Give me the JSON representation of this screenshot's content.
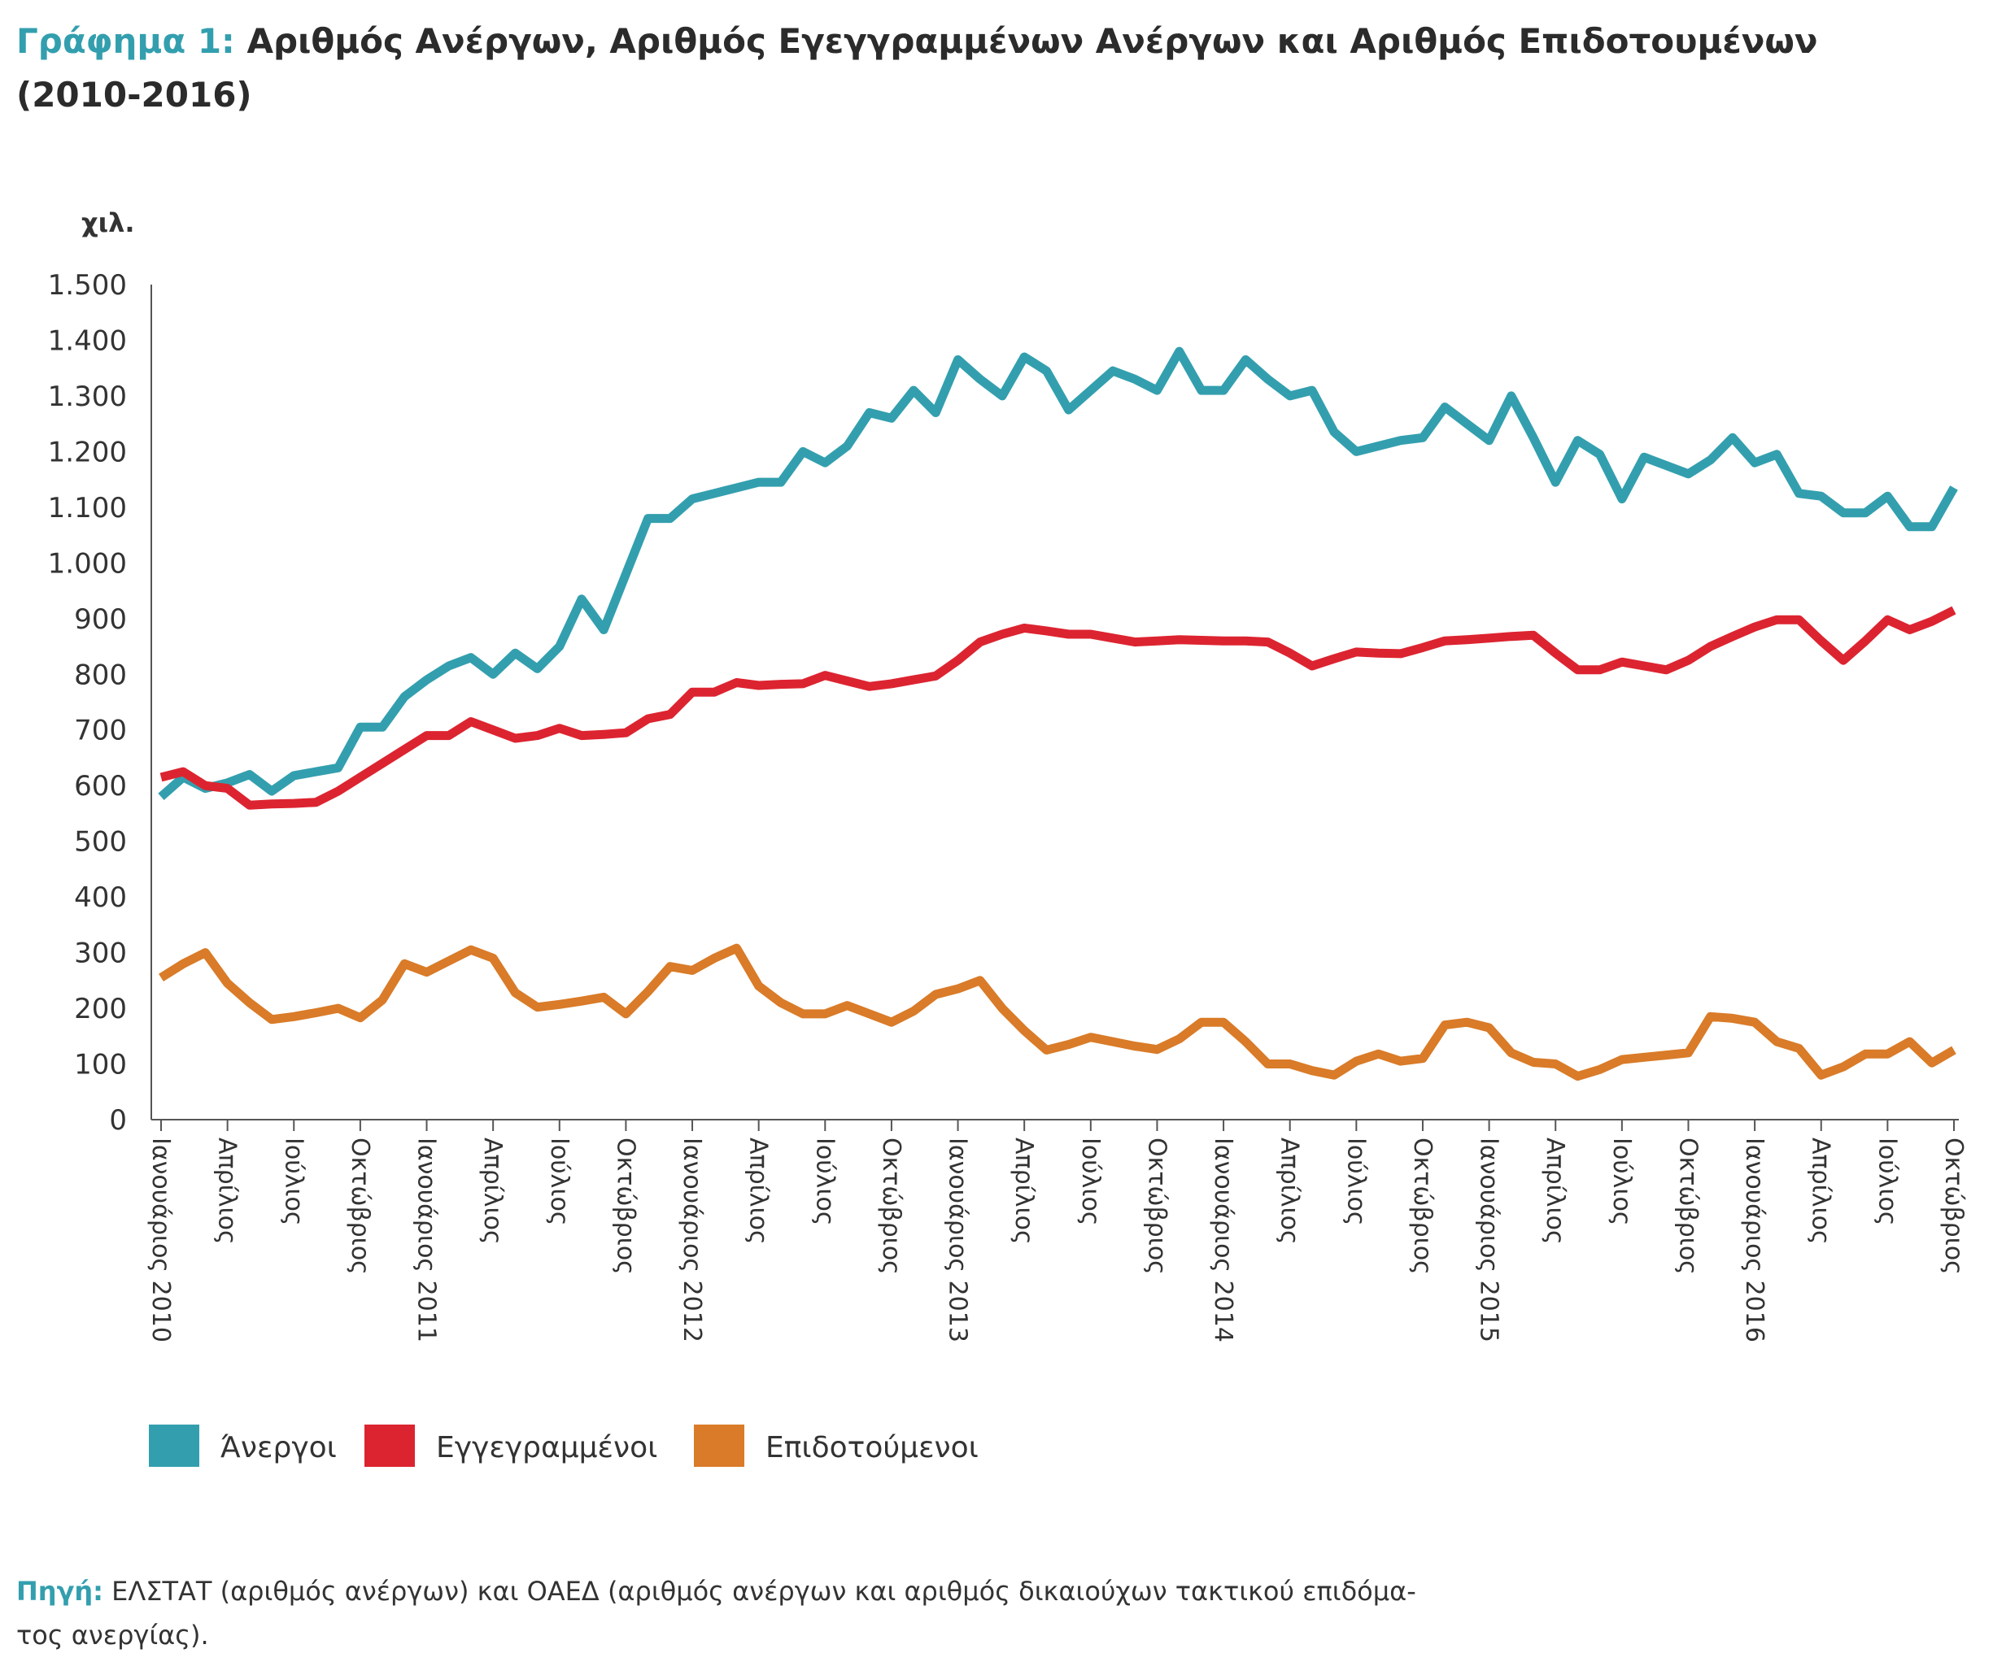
{
  "chart_data": {
    "type": "line",
    "title_label": "Γράφημα 1:",
    "title": "Αριθμός Ανέργων, Αριθμός Εγεγγραμμένων Ανέργων και Αριθμός Επιδοτουμένων (2010-2016)",
    "y_unit": "χιλ.",
    "categories": [
      "Ιανουάριος 2010",
      null,
      null,
      "Απρίλιος",
      null,
      null,
      "Ιούλιος",
      null,
      null,
      "Οκτώβριος",
      null,
      null,
      "Ιανουάριος 2011",
      null,
      null,
      "Απρίλιος",
      null,
      null,
      "Ιούλιος",
      null,
      null,
      "Οκτώβριος",
      null,
      null,
      "Ιανουάριος 2012",
      null,
      null,
      "Απρίλιος",
      null,
      null,
      "Ιούλιος",
      null,
      null,
      "Οκτώβριος",
      null,
      null,
      "Ιανουάριος 2013",
      null,
      null,
      "Απρίλιος",
      null,
      null,
      "Ιούλιος",
      null,
      null,
      "Οκτώβριος",
      null,
      null,
      "Ιανουάριος 2014",
      null,
      null,
      "Απρίλιος",
      null,
      null,
      "Ιούλιος",
      null,
      null,
      "Οκτώβριος",
      null,
      null,
      "Ιανουάριος 2015",
      null,
      null,
      "Απρίλιος",
      null,
      null,
      "Ιούλιος",
      null,
      null,
      "Οκτώβριος",
      null,
      null,
      "Ιανουάριος 2016",
      null,
      null,
      "Απρίλιος",
      null,
      null,
      "Ιούλιος",
      null,
      null,
      "Οκτώβριος"
    ],
    "series": [
      {
        "name": "Άνεργοι",
        "color": "#339fae",
        "values": [
          580,
          615,
          595,
          605,
          620,
          590,
          618,
          625,
          632,
          705,
          705,
          760,
          790,
          815,
          830,
          800,
          838,
          810,
          850,
          935,
          880,
          980,
          1080,
          1080,
          1115,
          1125,
          1135,
          1145,
          1145,
          1200,
          1180,
          1210,
          1270,
          1260,
          1310,
          1270,
          1365,
          1330,
          1300,
          1370,
          1345,
          1275,
          1310,
          1345,
          1330,
          1310,
          1380,
          1310,
          1310,
          1365,
          1330,
          1300,
          1310,
          1235,
          1200,
          1210,
          1220,
          1225,
          1280,
          1250,
          1220,
          1300,
          1225,
          1145,
          1220,
          1195,
          1115,
          1190,
          1175,
          1160,
          1185,
          1225,
          1180,
          1195,
          1125,
          1120,
          1090,
          1090,
          1120,
          1065,
          1065,
          1135
        ]
      },
      {
        "name": "Εγγεγραμμένοι",
        "color": "#dc2430",
        "values": [
          615,
          625,
          600,
          595,
          565,
          567,
          568,
          570,
          590,
          615,
          640,
          665,
          690,
          690,
          715,
          700,
          685,
          690,
          703,
          690,
          692,
          695,
          720,
          728,
          768,
          768,
          785,
          780,
          782,
          783,
          798,
          788,
          778,
          783,
          790,
          797,
          825,
          858,
          872,
          883,
          878,
          872,
          872,
          865,
          858,
          860,
          862,
          861,
          860,
          860,
          858,
          838,
          815,
          828,
          840,
          838,
          837,
          848,
          860,
          862,
          865,
          868,
          870,
          838,
          808,
          808,
          822,
          815,
          808,
          825,
          850,
          868,
          885,
          898,
          898,
          860,
          825,
          860,
          898,
          880,
          895,
          915
        ]
      },
      {
        "name": "Επιδοτούμενοι",
        "color": "#d97b28",
        "values": [
          255,
          280,
          300,
          245,
          210,
          180,
          185,
          192,
          200,
          183,
          215,
          280,
          265,
          285,
          305,
          290,
          228,
          202,
          207,
          213,
          220,
          190,
          230,
          275,
          268,
          290,
          308,
          240,
          210,
          190,
          190,
          205,
          190,
          175,
          195,
          225,
          235,
          250,
          200,
          160,
          125,
          135,
          148,
          140,
          132,
          126,
          145,
          175,
          175,
          140,
          100,
          100,
          88,
          80,
          105,
          118,
          105,
          110,
          170,
          175,
          165,
          120,
          103,
          100,
          78,
          90,
          108,
          112,
          116,
          120,
          185,
          182,
          175,
          140,
          128,
          80,
          95,
          118,
          118,
          140,
          102,
          125
        ]
      }
    ],
    "ylim": [
      0,
      1500
    ],
    "yticks": [
      0,
      100,
      200,
      300,
      400,
      500,
      600,
      700,
      800,
      900,
      {
        "value": 1000,
        "label": "1.000"
      },
      {
        "value": 1100,
        "label": "1.100"
      },
      {
        "value": 1200,
        "label": "1.200"
      },
      {
        "value": 1300,
        "label": "1.300"
      },
      {
        "value": 1400,
        "label": "1.400"
      },
      {
        "value": 1500,
        "label": "1.500"
      }
    ],
    "grid": false,
    "legend": "bottom",
    "source_label": "Πηγή:",
    "source": [
      "ΕΛΣΤΑΤ (αριθμός ανέργων) και ΟΑΕΔ (αριθμός ανέργων και αριθμός δικαιούχων τακτικού επιδόμα-",
      "τος ανεργίας)."
    ]
  }
}
